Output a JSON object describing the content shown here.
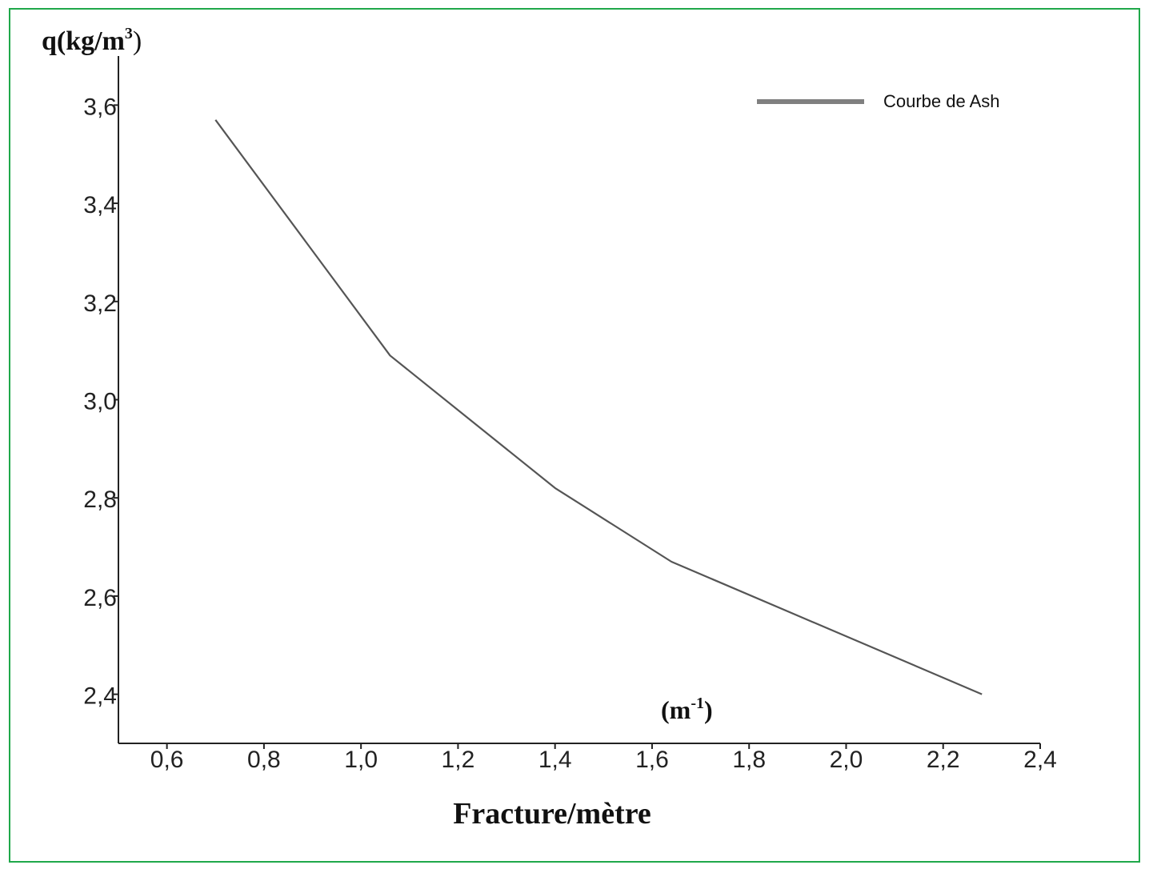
{
  "chart_data": {
    "type": "line",
    "y_unit_symbol": "q",
    "ylabel": "(kg/m",
    "ylabel_sup": "3",
    "ylabel_close": ")",
    "xlabel": "Fracture/mètre",
    "x_unit": "(m",
    "x_unit_sup": "-1",
    "x_unit_close": ")",
    "xlim": [
      0.5,
      2.4
    ],
    "ylim": [
      2.3,
      3.7
    ],
    "x_ticks": [
      0.6,
      0.8,
      1.0,
      1.2,
      1.4,
      1.6,
      1.8,
      2.0,
      2.2,
      2.4
    ],
    "x_tick_labels": [
      "0,6",
      "0,8",
      "1,0",
      "1,2",
      "1,4",
      "1,6",
      "1,8",
      "2,0",
      "2,2",
      "2,4"
    ],
    "y_ticks": [
      2.4,
      2.6,
      2.8,
      3.0,
      3.2,
      3.4,
      3.6
    ],
    "y_tick_labels": [
      "2,4",
      "2,6",
      "2,8",
      "3,0",
      "3,2",
      "3,4",
      "3,6"
    ],
    "series": [
      {
        "name": "Courbe de Ash",
        "x": [
          0.7,
          1.06,
          1.4,
          1.64,
          2.28
        ],
        "y": [
          3.57,
          3.09,
          2.82,
          2.67,
          2.4
        ]
      }
    ],
    "legend_position": "top-right",
    "grid": false,
    "line_color": "#555555",
    "legend_line_color": "#808080",
    "frame_color": "#1fa84a"
  }
}
